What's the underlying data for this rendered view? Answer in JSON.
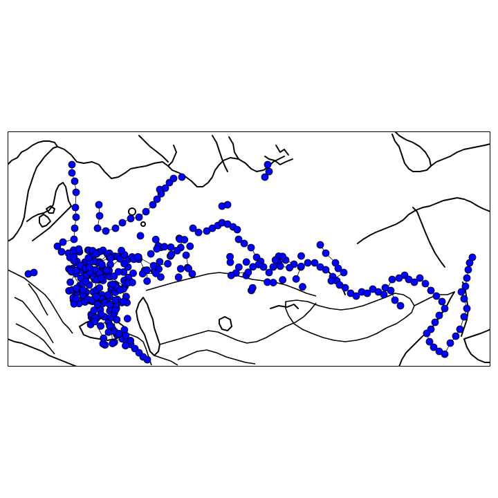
{
  "map": {
    "colors": {
      "background": "#ffffff",
      "coastline": "#000000",
      "node_fill": "#0000ff",
      "node_stroke": "#000000",
      "edge": "#000000"
    },
    "features": [
      "coastlines",
      "country-borders",
      "network-nodes",
      "network-edges"
    ],
    "region": "northern-eurasia"
  }
}
